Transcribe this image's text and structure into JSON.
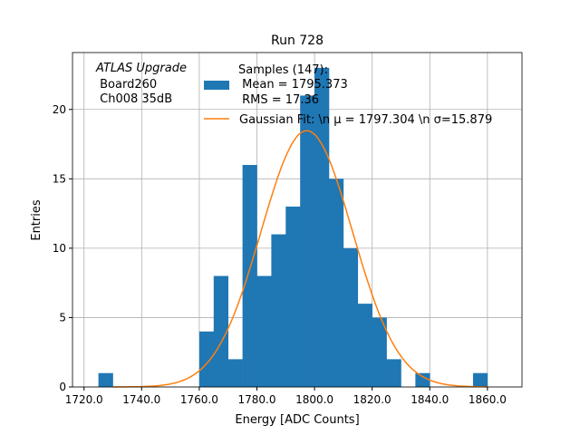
{
  "chart_data": {
    "type": "bar",
    "title": "Run 728",
    "xlabel": "Energy [ADC Counts]",
    "ylabel": "Entries",
    "xlim": [
      1716,
      1872
    ],
    "ylim": [
      0,
      24.1
    ],
    "grid": true,
    "xticks": [
      1720,
      1740,
      1760,
      1780,
      1800,
      1820,
      1840,
      1860
    ],
    "xtick_labels": [
      "1720.0",
      "1740.0",
      "1760.0",
      "1780.0",
      "1800.0",
      "1820.0",
      "1840.0",
      "1860.0"
    ],
    "yticks": [
      0,
      5,
      10,
      15,
      20
    ],
    "yticks_labels": [
      "0",
      "5",
      "10",
      "15",
      "20"
    ],
    "bin_width": 5,
    "bin_edges_start": [
      1725,
      1760,
      1765,
      1770,
      1775,
      1780,
      1785,
      1790,
      1795,
      1800,
      1805,
      1810,
      1815,
      1820,
      1825,
      1835,
      1855
    ],
    "counts": [
      1,
      4,
      8,
      2,
      16,
      8,
      11,
      13,
      21,
      23,
      15,
      10,
      6,
      5,
      2,
      1,
      1
    ],
    "bar_color": "#1f77b4",
    "fit": {
      "mu": 1797.304,
      "sigma": 15.879,
      "n": 147,
      "range": [
        1730,
        1860
      ],
      "color": "#ff7f0e"
    },
    "legend": {
      "placement": "top-right",
      "hist_label_lines": [
        "Samples (147):",
        " Mean = 1795.373",
        " RMS = 17.36"
      ],
      "fit_label": "Gaussian Fit: \\n μ = 1797.304 \\n σ=15.879"
    },
    "annotation_lines": [
      "ATLAS Upgrade",
      " Board260",
      " Ch008 35dB"
    ]
  }
}
